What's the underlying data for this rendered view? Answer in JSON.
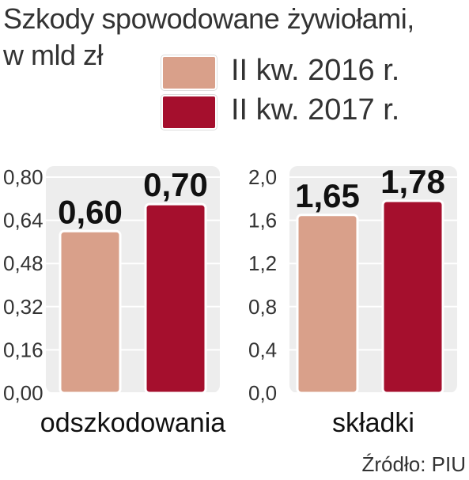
{
  "header": {
    "title": "Szkody spowodowane żywiołami,",
    "subtitle": "w mld zł"
  },
  "legend": [
    {
      "label": "II kw. 2016 r.",
      "color": "#d9a08a"
    },
    {
      "label": "II kw. 2017 r.",
      "color": "#a50f2d"
    }
  ],
  "source": "Źródło: PIU",
  "chart_data": [
    {
      "type": "bar",
      "categories": [
        "odszkodowania"
      ],
      "series": [
        {
          "name": "II kw. 2016 r.",
          "values": [
            0.6
          ],
          "label": "0,60"
        },
        {
          "name": "II kw. 2017 r.",
          "values": [
            0.7
          ],
          "label": "0,70"
        }
      ],
      "ylim": [
        0,
        0.8
      ],
      "yticks": [
        0.0,
        0.16,
        0.32,
        0.48,
        0.64,
        0.8
      ],
      "ytick_labels": [
        "0,00",
        "0,16",
        "0,32",
        "0,48",
        "0,64",
        "0,80"
      ],
      "grid": true
    },
    {
      "type": "bar",
      "categories": [
        "składki"
      ],
      "series": [
        {
          "name": "II kw. 2016 r.",
          "values": [
            1.65
          ],
          "label": "1,65"
        },
        {
          "name": "II kw. 2017 r.",
          "values": [
            1.78
          ],
          "label": "1,78"
        }
      ],
      "ylim": [
        0,
        2.0
      ],
      "yticks": [
        0.0,
        0.4,
        0.8,
        1.2,
        1.6,
        2.0
      ],
      "ytick_labels": [
        "0,0",
        "0,4",
        "0,8",
        "1,2",
        "1,6",
        "2,0"
      ],
      "grid": true
    }
  ]
}
